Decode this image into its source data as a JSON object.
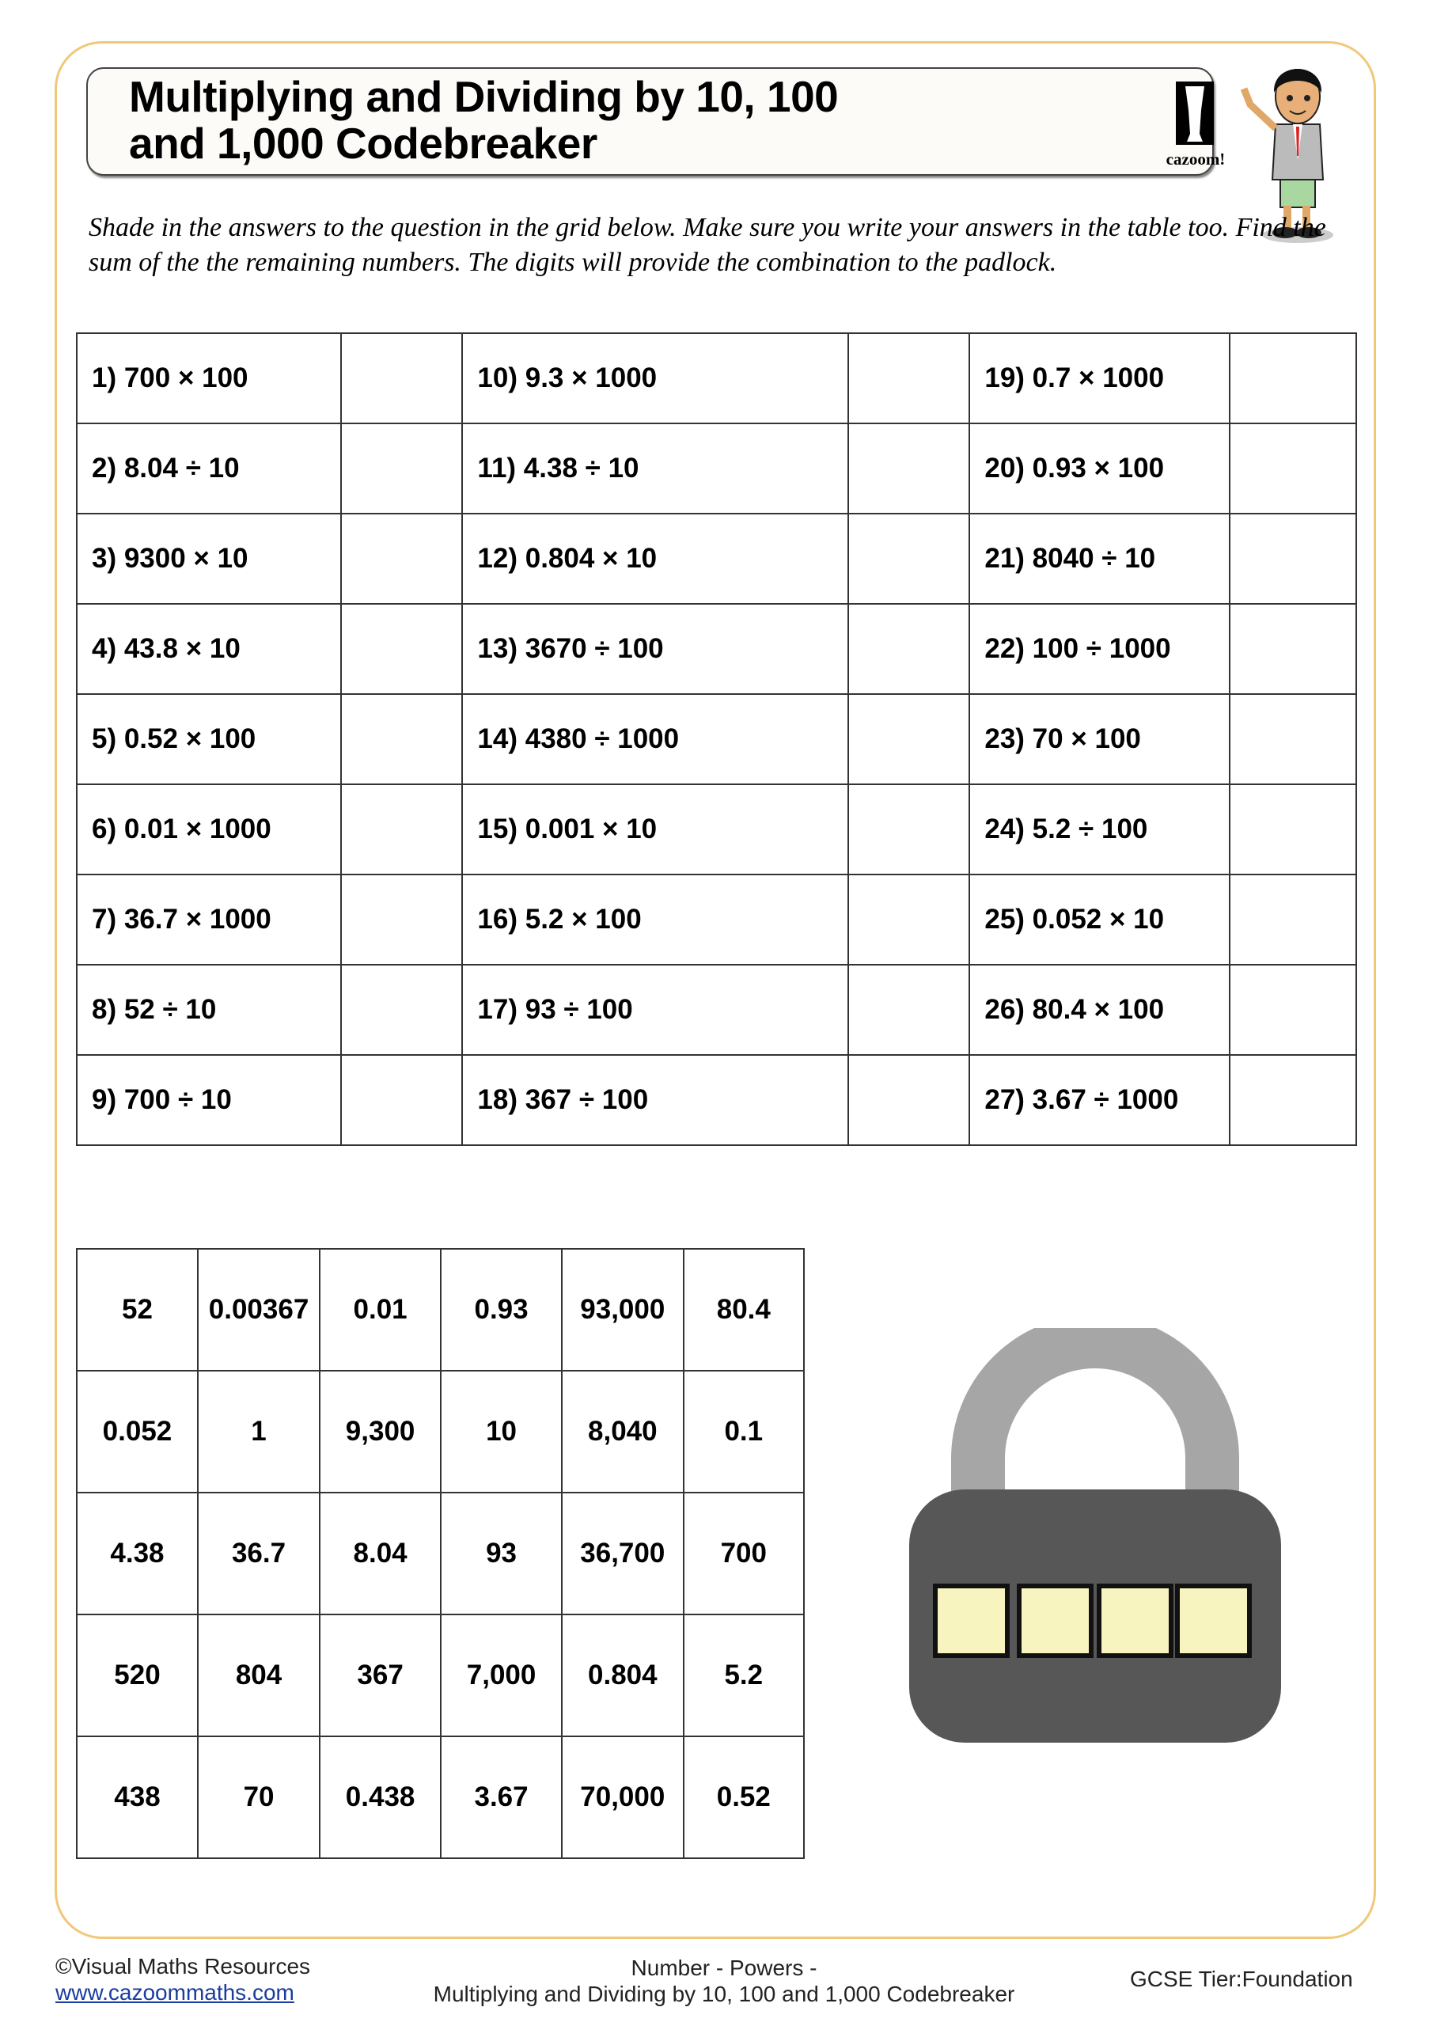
{
  "header": {
    "title_line1": "Multiplying and Dividing by 10, 100",
    "title_line2": "and 1,000 Codebreaker",
    "logo_text": "cazoom!"
  },
  "instructions": "Shade in the answers to the question in the grid below. Make sure you write your answers in the table too. Find the sum of the the remaining numbers. The digits will provide the combination to the padlock.",
  "questions": [
    [
      "1)  700 × 100",
      "10)  9.3 × 1000",
      "19)   0.7 × 1000"
    ],
    [
      "2)  8.04 ÷ 10",
      "11)  4.38 ÷ 10",
      "20)   0.93 × 100"
    ],
    [
      "3)  9300 × 10",
      "12)  0.804 × 10",
      "21)   8040 ÷ 10"
    ],
    [
      "4)  43.8 × 10",
      "13)  3670 ÷ 100",
      "22)   100 ÷ 1000"
    ],
    [
      "5)  0.52 × 100",
      "14)  4380 ÷ 1000",
      "23)   70 × 100"
    ],
    [
      "6)  0.01 × 1000",
      "15)  0.001 × 10",
      "24)   5.2 ÷ 100"
    ],
    [
      "7)  36.7 × 1000",
      "16)  5.2 × 100",
      "25)   0.052 × 10"
    ],
    [
      "8)  52 ÷ 10",
      "17)  93 ÷ 100",
      "26)   80.4 × 100"
    ],
    [
      "9)  700 ÷ 10",
      "18)  367 ÷ 100",
      "27)   3.67 ÷ 1000"
    ]
  ],
  "grid": [
    [
      "52",
      "0.00367",
      "0.01",
      "0.93",
      "93,000",
      "80.4"
    ],
    [
      "0.052",
      "1",
      "9,300",
      "10",
      "8,040",
      "0.1"
    ],
    [
      "4.38",
      "36.7",
      "8.04",
      "93",
      "36,700",
      "700"
    ],
    [
      "520",
      "804",
      "367",
      "7,000",
      "0.804",
      "5.2"
    ],
    [
      "438",
      "70",
      "0.438",
      "3.67",
      "70,000",
      "0.52"
    ]
  ],
  "padlock": {
    "digit_boxes": 4,
    "box_color": "#f8f4c0",
    "body_color": "#575757",
    "shackle_color": "#a6a6a6"
  },
  "footer": {
    "copyright": "©Visual Maths Resources",
    "website": "www.cazoommaths.com",
    "topic_line1": "Number - Powers -",
    "topic_line2": "Multiplying and Dividing by 10, 100 and 1,000 Codebreaker",
    "tier": "GCSE Tier:Foundation"
  },
  "colors": {
    "frame": "#f0c878",
    "link": "#1a3d9c"
  }
}
